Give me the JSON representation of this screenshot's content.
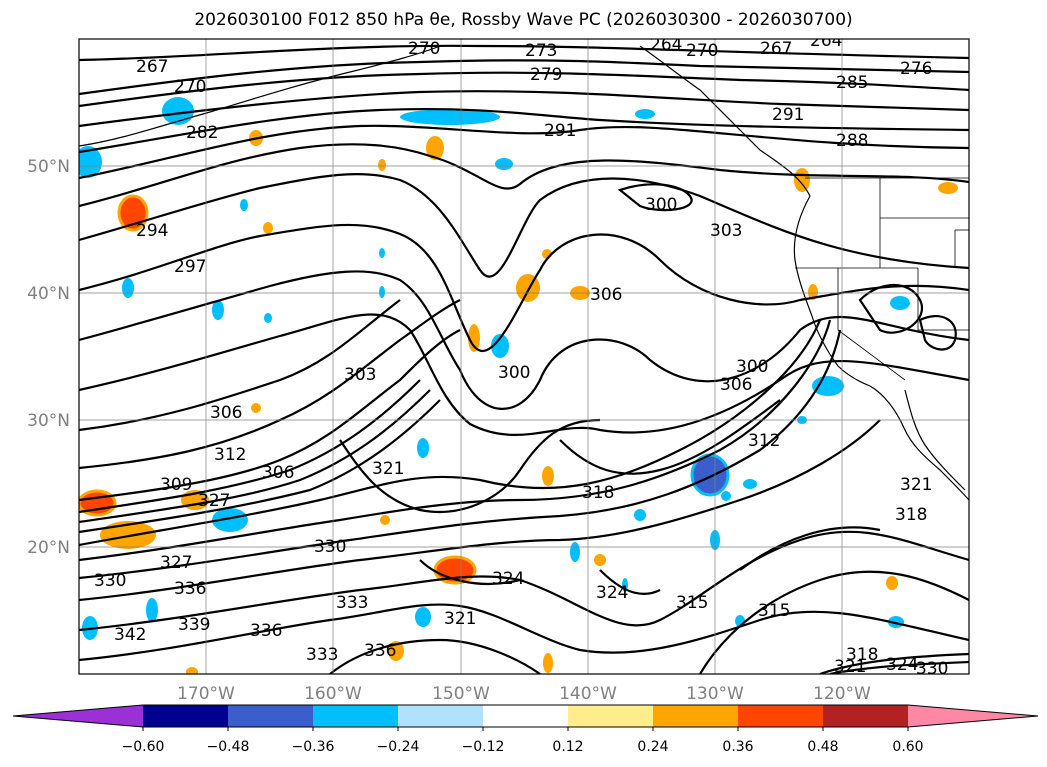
{
  "title": "2026030100 F012 850 hPa θe, Rossby Wave PC (2026030300 - 2026030700)",
  "map": {
    "lon_range": [
      -180,
      -110
    ],
    "lat_range": [
      10,
      60
    ],
    "lat_labels": [
      "50°N",
      "40°N",
      "30°N",
      "20°N"
    ],
    "lon_labels": [
      "170°W",
      "160°W",
      "150°W",
      "140°W",
      "130°W",
      "120°W"
    ],
    "contour_labels": [
      "267",
      "270",
      "270",
      "273",
      "264",
      "270",
      "267",
      "264",
      "276",
      "279",
      "285",
      "282",
      "291",
      "291",
      "288",
      "294",
      "297",
      "300",
      "303",
      "306",
      "306",
      "300",
      "303",
      "300",
      "306",
      "312",
      "309",
      "312",
      "306",
      "327",
      "318",
      "321",
      "321",
      "318",
      "327",
      "330",
      "330",
      "336",
      "333",
      "324",
      "324",
      "339",
      "336",
      "321",
      "315",
      "315",
      "342",
      "333",
      "336",
      "318",
      "321",
      "324",
      "330"
    ]
  },
  "colorbar": {
    "colors": [
      "#9b30d6",
      "#000090",
      "#3a5fcd",
      "#00bfff",
      "#b0e2ff",
      "#ffffff",
      "#ffec8b",
      "#ffa500",
      "#ff4500",
      "#b22222",
      "#ff87a6"
    ],
    "tick_labels": [
      "−0.60",
      "−0.48",
      "−0.36",
      "−0.24",
      "−0.12",
      "0.12",
      "0.24",
      "0.36",
      "0.48",
      "0.60"
    ]
  }
}
